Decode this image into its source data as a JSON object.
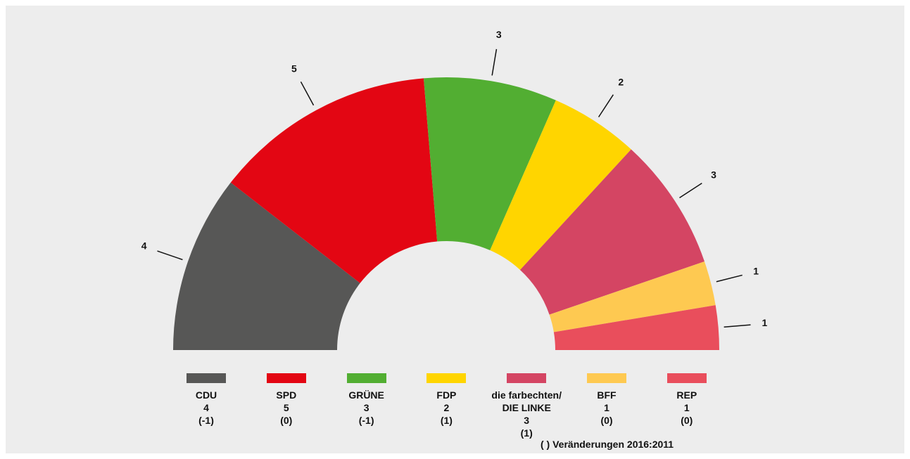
{
  "chart_data": {
    "type": "semicircle",
    "categories": [
      "CDU",
      "SPD",
      "GRÜNE",
      "FDP",
      "die farbechten/\nDIE LINKE",
      "BFF",
      "REP"
    ],
    "values": [
      4,
      5,
      3,
      2,
      3,
      1,
      1
    ],
    "changes": [
      "(-1)",
      "(0)",
      "(-1)",
      "(1)",
      "(1)",
      "(0)",
      "(0)"
    ],
    "colors": [
      "#575756",
      "#e30613",
      "#52ae32",
      "#ffd500",
      "#d44563",
      "#fec951",
      "#e94e5c"
    ],
    "note": "( ) Veränderungen 2016:2011"
  }
}
